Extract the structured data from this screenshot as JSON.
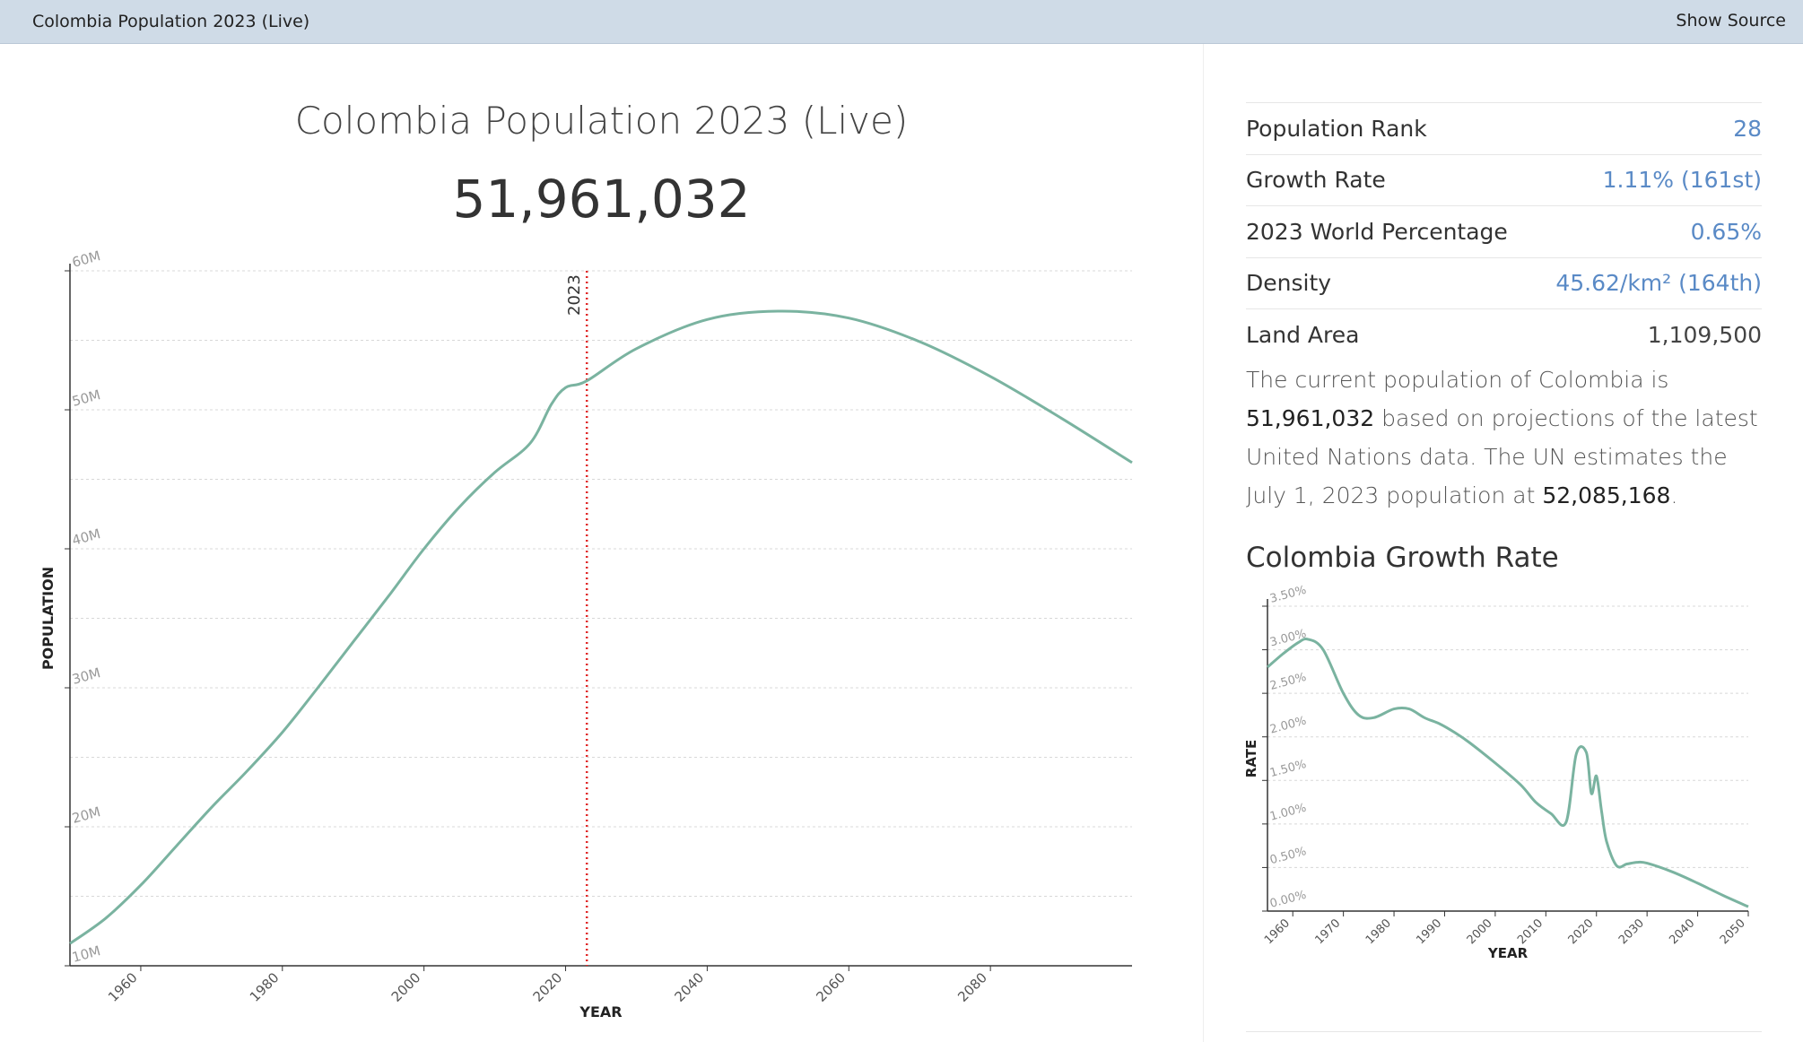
{
  "topbar": {
    "title": "Colombia Population 2023 (Live)",
    "show_source": "Show Source"
  },
  "main": {
    "title": "Colombia Population 2023 (Live)",
    "counter": "51,961,032"
  },
  "stats": [
    {
      "label": "Population Rank",
      "value": "28"
    },
    {
      "label": "Growth Rate",
      "value": "1.11% (161st)"
    },
    {
      "label": "2023 World Percentage",
      "value": "0.65%"
    },
    {
      "label": "Density",
      "value": "45.62/km² (164th)"
    },
    {
      "label": "Land Area",
      "value": "1,109,500"
    }
  ],
  "description": {
    "p1": "The current population of Colombia is ",
    "current": "51,961,032",
    "p2": " based on projections of the latest United Nations data. The UN estimates the July 1, 2023 population at ",
    "estimate": "52,085,168",
    "p3": "."
  },
  "growth_title": "Colombia Growth Rate",
  "colors": {
    "line": "#7ab3a0",
    "marker": "#e02828",
    "grid": "#d8d8d8",
    "link": "#5a8ac6"
  },
  "chart_data": [
    {
      "type": "line",
      "title": "Colombia Population",
      "xlabel": "YEAR",
      "ylabel": "POPULATION",
      "xlim": [
        1950,
        2100
      ],
      "ylim": [
        10000000,
        60000000
      ],
      "xticks": [
        1960,
        1980,
        2000,
        2020,
        2040,
        2060,
        2080
      ],
      "yticks": [
        {
          "v": 10000000,
          "label": "10M"
        },
        {
          "v": 20000000,
          "label": "20M"
        },
        {
          "v": 30000000,
          "label": "30M"
        },
        {
          "v": 40000000,
          "label": "40M"
        },
        {
          "v": 50000000,
          "label": "50M"
        },
        {
          "v": 60000000,
          "label": "60M"
        }
      ],
      "marker": {
        "x": 2023,
        "label": "2023"
      },
      "x": [
        1950,
        1955,
        1960,
        1965,
        1970,
        1975,
        1980,
        1985,
        1990,
        1995,
        2000,
        2005,
        2010,
        2015,
        2018,
        2020,
        2023,
        2030,
        2040,
        2050,
        2060,
        2070,
        2080,
        2090,
        2100
      ],
      "y": [
        11600000,
        13400000,
        15800000,
        18600000,
        21400000,
        24000000,
        26800000,
        30000000,
        33300000,
        36600000,
        40000000,
        43000000,
        45500000,
        47600000,
        50400000,
        51600000,
        52085168,
        54400000,
        56500000,
        57100000,
        56600000,
        54900000,
        52400000,
        49400000,
        46200000
      ]
    },
    {
      "type": "line",
      "title": "Colombia Growth Rate",
      "xlabel": "YEAR",
      "ylabel": "RATE",
      "xlim": [
        1955,
        2050
      ],
      "ylim": [
        0,
        3.5
      ],
      "xticks": [
        1960,
        1970,
        1980,
        1990,
        2000,
        2010,
        2020,
        2030,
        2040,
        2050
      ],
      "yticks": [
        {
          "v": 0,
          "label": "0.00%"
        },
        {
          "v": 0.5,
          "label": "0.50%"
        },
        {
          "v": 1.0,
          "label": "1.00%"
        },
        {
          "v": 1.5,
          "label": "1.50%"
        },
        {
          "v": 2.0,
          "label": "2.00%"
        },
        {
          "v": 2.5,
          "label": "2.50%"
        },
        {
          "v": 3.0,
          "label": "3.00%"
        },
        {
          "v": 3.5,
          "label": "3.50%"
        }
      ],
      "x": [
        1955,
        1958,
        1961,
        1963,
        1966,
        1970,
        1973,
        1976,
        1980,
        1983,
        1986,
        1989,
        1992,
        1995,
        2000,
        2005,
        2008,
        2011,
        2014,
        2016,
        2018,
        2019,
        2020,
        2021,
        2022,
        2024,
        2026,
        2028,
        2030,
        2035,
        2040,
        2045,
        2050
      ],
      "y": [
        2.8,
        2.95,
        3.08,
        3.12,
        3.0,
        2.5,
        2.25,
        2.22,
        2.32,
        2.32,
        2.22,
        2.15,
        2.05,
        1.93,
        1.7,
        1.45,
        1.25,
        1.12,
        1.02,
        1.8,
        1.82,
        1.35,
        1.55,
        1.15,
        0.8,
        0.52,
        0.54,
        0.56,
        0.55,
        0.45,
        0.32,
        0.18,
        0.05
      ]
    }
  ]
}
